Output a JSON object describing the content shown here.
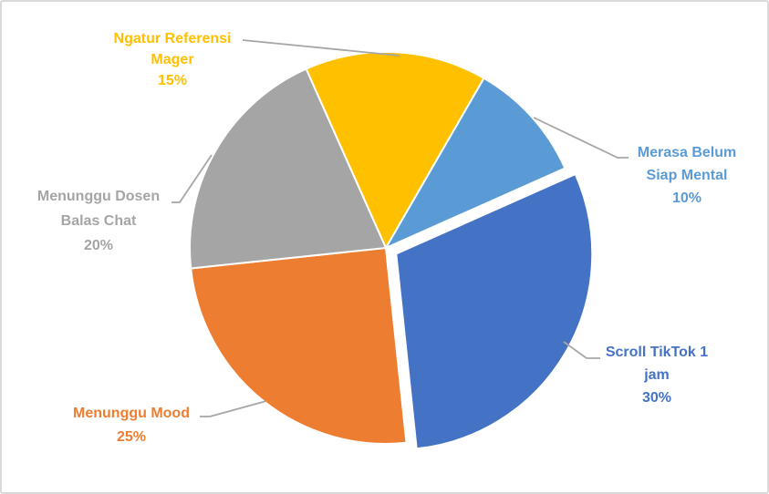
{
  "chart_data": {
    "type": "pie",
    "title": "",
    "unit": "%",
    "legend": "none",
    "direction": "clockwise",
    "start_angle_deg": -24,
    "background": "#FFFFFF",
    "border_color": "#D9D9D9",
    "leader_line_color": "#A6A6A6",
    "slice_stroke_color": "#FFFFFF",
    "categories": [
      "Ngatur Referensi Mager",
      "Merasa Belum Siap Mental",
      "Scroll TikTok 1 jam",
      "Menunggu Mood",
      "Menunggu Dosen Balas Chat"
    ],
    "values": [
      15,
      10,
      30,
      25,
      20
    ],
    "slices": [
      {
        "name": "Ngatur Referensi Mager",
        "value": 15,
        "pct_label": "15%",
        "color": "#FFC000",
        "label_lines": [
          "Ngatur Referensi",
          "Mager"
        ],
        "exploded": false
      },
      {
        "name": "Merasa Belum Siap Mental",
        "value": 10,
        "pct_label": "10%",
        "color": "#5B9BD5",
        "label_lines": [
          "Merasa Belum",
          "Siap Mental"
        ],
        "exploded": false
      },
      {
        "name": "Scroll TikTok 1 jam",
        "value": 30,
        "pct_label": "30%",
        "color": "#4472C4",
        "label_lines": [
          "Scroll TikTok 1",
          "jam"
        ],
        "exploded": true
      },
      {
        "name": "Menunggu Mood",
        "value": 25,
        "pct_label": "25%",
        "color": "#ED7D31",
        "label_lines": [
          "Menunggu Mood"
        ],
        "exploded": false
      },
      {
        "name": "Menunggu Dosen Balas Chat",
        "value": 20,
        "pct_label": "20%",
        "color": "#A5A5A5",
        "label_lines": [
          "Menunggu Dosen",
          "Balas Chat"
        ],
        "exploded": false
      }
    ]
  }
}
